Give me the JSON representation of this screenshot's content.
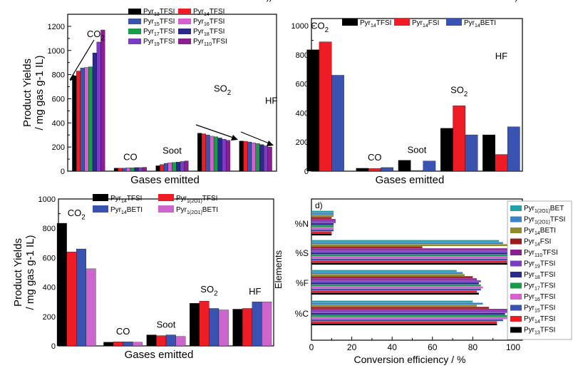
{
  "figure": {
    "colors": {
      "black": "#000000",
      "red": "#ee1c24",
      "blue": "#3a53b0",
      "green": "#1a9b4a",
      "magenta": "#d75fd0",
      "navy": "#2a2a8c",
      "violet": "#7a3cc0",
      "purple": "#8a2090",
      "pink": "#cc66cc",
      "teal": "#26a0a8",
      "steel": "#3f82c6",
      "olive": "#8c8c2a",
      "darkred": "#9b1b1b"
    }
  },
  "chart_data": [
    {
      "panel": "a",
      "panel_label": "a)",
      "type": "bar",
      "ylabel_line1": "Product Yields",
      "ylabel_line2": "/ mg gas g-1 IL)",
      "xlabel": "Gases  emitted",
      "ylim": [
        0,
        1300
      ],
      "yticks": [
        0,
        200,
        400,
        600,
        800,
        1000,
        1200
      ],
      "categories": [
        "CO2",
        "CO",
        "Soot",
        "SO2",
        "HF"
      ],
      "category_labels": [
        "CO2",
        "CO",
        "Soot",
        "SO2",
        "HF"
      ],
      "series": [
        {
          "name": "Pyr13TFSI",
          "color": "black",
          "values": [
            790,
            25,
            45,
            315,
            250
          ]
        },
        {
          "name": "Pyr14TFSI",
          "color": "red",
          "values": [
            830,
            25,
            55,
            310,
            248
          ]
        },
        {
          "name": "Pyr15TFSI",
          "color": "blue",
          "values": [
            855,
            25,
            65,
            300,
            242
          ]
        },
        {
          "name": "Pyr16TFSI",
          "color": "magenta",
          "values": [
            860,
            28,
            70,
            290,
            235
          ]
        },
        {
          "name": "Pyr17TFSI",
          "color": "green",
          "values": [
            865,
            28,
            72,
            285,
            230
          ]
        },
        {
          "name": "Pyr18TFSI",
          "color": "navy",
          "values": [
            980,
            30,
            75,
            275,
            220
          ]
        },
        {
          "name": "Pyr19TFSI",
          "color": "violet",
          "values": [
            1070,
            30,
            80,
            265,
            210
          ]
        },
        {
          "name": "Pyr110TFSI",
          "color": "purple",
          "values": [
            1170,
            32,
            85,
            255,
            200
          ]
        }
      ],
      "legend": [
        {
          "base": "Pyr",
          "sub": "13",
          "tail": "TFSI",
          "color": "black"
        },
        {
          "base": "Pyr",
          "sub": "14",
          "tail": "TFSI",
          "color": "red"
        },
        {
          "base": "Pyr",
          "sub": "15",
          "tail": "TFSI",
          "color": "blue"
        },
        {
          "base": "Pyr",
          "sub": "16",
          "tail": "TFSI",
          "color": "magenta"
        },
        {
          "base": "Pyr",
          "sub": "17",
          "tail": "TFSI",
          "color": "green"
        },
        {
          "base": "Pyr",
          "sub": "18",
          "tail": "TFSI",
          "color": "navy"
        },
        {
          "base": "Pyr",
          "sub": "19",
          "tail": "TFSI",
          "color": "violet"
        },
        {
          "base": "Pyr",
          "sub": "110",
          "tail": "TFSI",
          "color": "purple"
        }
      ]
    },
    {
      "panel": "b",
      "panel_label": "b)",
      "type": "bar",
      "xlabel": "Gases  emitted",
      "ylim": [
        0,
        1050
      ],
      "yticks": [
        0,
        200,
        400,
        600,
        800,
        1000
      ],
      "categories": [
        "CO2",
        "CO",
        "Soot",
        "SO2",
        "HF"
      ],
      "category_labels": [
        "CO2",
        "CO",
        "Soot",
        "SO2",
        "HF"
      ],
      "series": [
        {
          "name": "Pyr14TFSI",
          "color": "black",
          "values": [
            835,
            20,
            75,
            295,
            250
          ]
        },
        {
          "name": "Pyr14FSI",
          "color": "red",
          "values": [
            890,
            18,
            5,
            450,
            115
          ]
        },
        {
          "name": "Pyr14BETI",
          "color": "blue",
          "values": [
            660,
            25,
            70,
            250,
            305
          ]
        }
      ],
      "legend": [
        {
          "base": "Pyr",
          "sub": "14",
          "tail": "TFSI",
          "color": "black"
        },
        {
          "base": "Pyr",
          "sub": "14",
          "tail": "FSI",
          "color": "red"
        },
        {
          "base": "Pyr",
          "sub": "14",
          "tail": "BETI",
          "color": "blue"
        }
      ]
    },
    {
      "panel": "c",
      "panel_label": "c)",
      "type": "bar",
      "ylabel_line1": "Product Yields",
      "ylabel_line2": "/ mg gas g-1 IL)",
      "xlabel": "Gases  emitted",
      "ylim": [
        0,
        1000
      ],
      "yticks": [
        0,
        200,
        400,
        600,
        800,
        1000
      ],
      "categories": [
        "CO2",
        "CO",
        "Soot",
        "SO2",
        "HF"
      ],
      "category_labels": [
        "CO2",
        "CO",
        "Soot",
        "SO2",
        "HF"
      ],
      "series": [
        {
          "name": "Pyr14TFSI",
          "color": "black",
          "values": [
            835,
            25,
            75,
            290,
            250
          ]
        },
        {
          "name": "Pyr1(2O1)TFSI",
          "color": "red",
          "values": [
            640,
            28,
            70,
            305,
            255
          ]
        },
        {
          "name": "Pyr14BETI",
          "color": "blue",
          "values": [
            660,
            28,
            75,
            255,
            300
          ]
        },
        {
          "name": "Pyr1(2O1)BETI",
          "color": "pink",
          "values": [
            525,
            25,
            65,
            245,
            300
          ]
        }
      ],
      "legend": [
        {
          "base": "Pyr",
          "sub": "14",
          "tail": "TFSI",
          "color": "black"
        },
        {
          "base": "Pyr",
          "sub": "1(2O1)",
          "tail": "TFSI",
          "color": "red"
        },
        {
          "base": "Pyr",
          "sub": "14",
          "tail": "BETI",
          "color": "blue"
        },
        {
          "base": "Pyr",
          "sub": "1(2O1)",
          "tail": "BETI",
          "color": "pink"
        }
      ]
    },
    {
      "panel": "d",
      "panel_label": "d)",
      "type": "bar",
      "orientation": "horizontal",
      "ylabel": "Elements",
      "xlabel": "Conversion efficiency / %",
      "xlim": [
        0,
        100
      ],
      "xticks": [
        0,
        20,
        40,
        60,
        80,
        100
      ],
      "categories": [
        "%C",
        "%F",
        "%S",
        "%N"
      ],
      "series": [
        {
          "name": "Pyr13TFSI",
          "color": "black",
          "values": [
            92,
            83,
            98,
            10
          ]
        },
        {
          "name": "Pyr14TFSI",
          "color": "red",
          "values": [
            92,
            82,
            97,
            10
          ]
        },
        {
          "name": "Pyr15TFSI",
          "color": "blue",
          "values": [
            95,
            84,
            98,
            11
          ]
        },
        {
          "name": "Pyr16TFSI",
          "color": "magenta",
          "values": [
            97,
            85,
            99,
            11
          ]
        },
        {
          "name": "Pyr17TFSI",
          "color": "green",
          "values": [
            97,
            84,
            98,
            11
          ]
        },
        {
          "name": "Pyr18TFSI",
          "color": "navy",
          "values": [
            96,
            83,
            98,
            11
          ]
        },
        {
          "name": "Pyr19TFSI",
          "color": "violet",
          "values": [
            98,
            84,
            99,
            12
          ]
        },
        {
          "name": "Pyr110TFSI",
          "color": "purple",
          "values": [
            98,
            82,
            100,
            12
          ]
        },
        {
          "name": "Pyr14FSI",
          "color": "darkred",
          "values": [
            88,
            80,
            55,
            10
          ]
        },
        {
          "name": "Pyr14BETI",
          "color": "olive",
          "values": [
            82,
            76,
            98,
            11
          ]
        },
        {
          "name": "Pyr1(2O1)TFSI",
          "color": "steel",
          "values": [
            85,
            75,
            95,
            11
          ]
        },
        {
          "name": "Pyr1(2O1)BETI",
          "color": "teal",
          "values": [
            80,
            72,
            93,
            11
          ]
        }
      ],
      "legend": [
        {
          "base": "Pyr",
          "sub": "1(2O1)",
          "tail": "BET",
          "color": "teal"
        },
        {
          "base": "Pyr",
          "sub": "1(2O1)",
          "tail": "TFSI",
          "color": "steel"
        },
        {
          "base": "Pyr",
          "sub": "14",
          "tail": "BETI",
          "color": "olive"
        },
        {
          "base": "Pyr",
          "sub": "14",
          "tail": "FSI",
          "color": "darkred"
        },
        {
          "base": "Pyr",
          "sub": "110",
          "tail": "TFSI",
          "color": "purple"
        },
        {
          "base": "Pyr",
          "sub": "19",
          "tail": "TFSI",
          "color": "violet"
        },
        {
          "base": "Pyr",
          "sub": "18",
          "tail": "TFSI",
          "color": "navy"
        },
        {
          "base": "Pyr",
          "sub": "17",
          "tail": "TFSI",
          "color": "green"
        },
        {
          "base": "Pyr",
          "sub": "16",
          "tail": "TFSI",
          "color": "magenta"
        },
        {
          "base": "Pyr",
          "sub": "15",
          "tail": "TFSI",
          "color": "blue"
        },
        {
          "base": "Pyr",
          "sub": "14",
          "tail": "TFSI",
          "color": "red"
        },
        {
          "base": "Pyr",
          "sub": "13",
          "tail": "TFSI",
          "color": "black"
        }
      ]
    }
  ]
}
